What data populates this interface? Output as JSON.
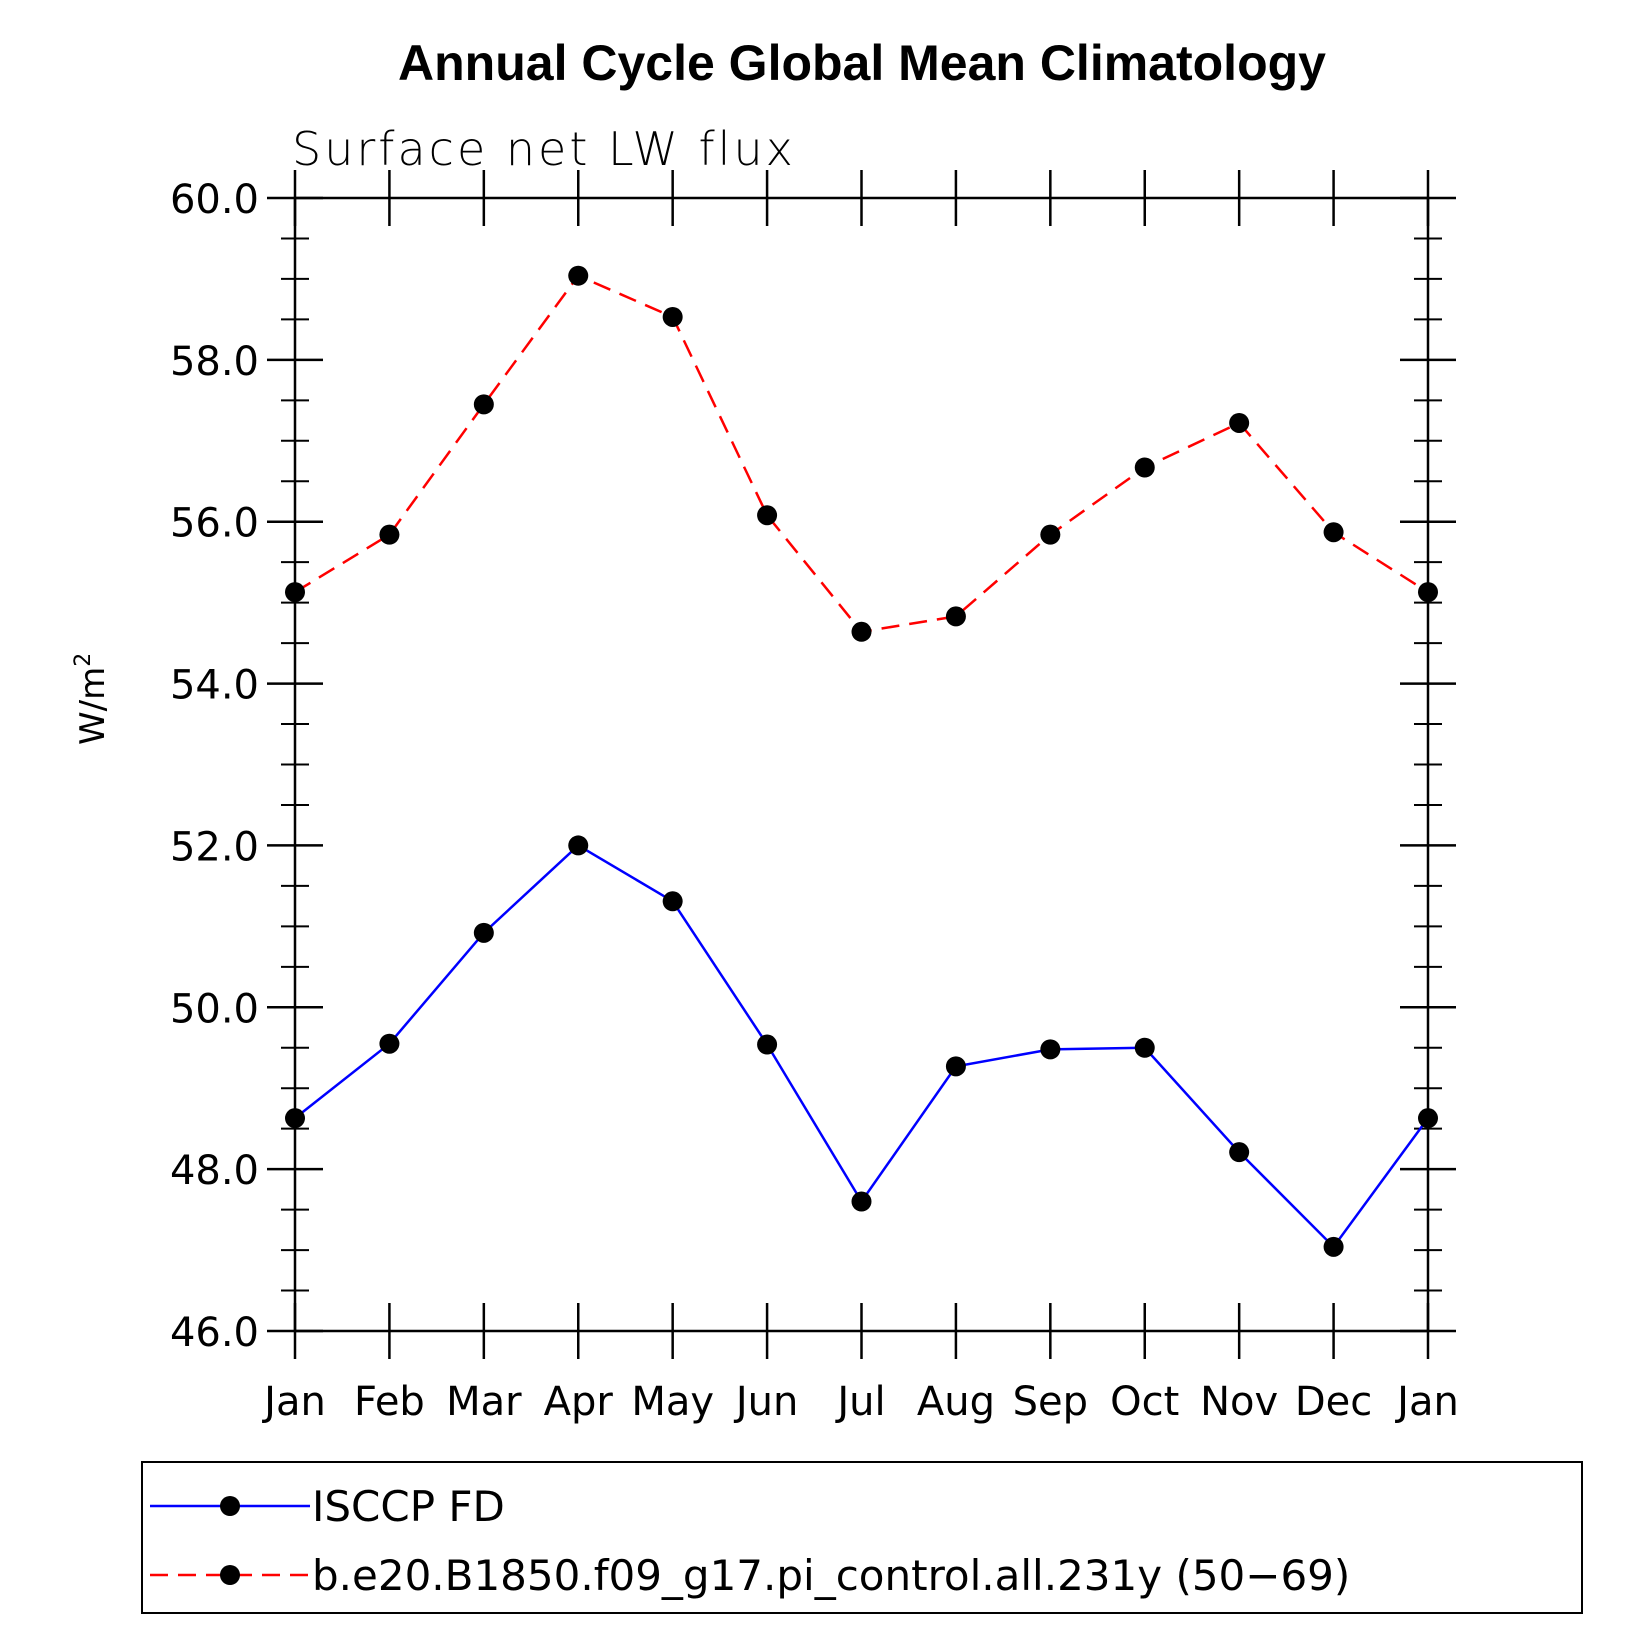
{
  "chart_data": {
    "type": "line",
    "title": "Annual Cycle Global Mean Climatology",
    "subtitle": "Surface net LW flux",
    "ylabel_main": "W/m",
    "ylabel_sup": "2",
    "xlabel": "",
    "categories": [
      "Jan",
      "Feb",
      "Mar",
      "Apr",
      "May",
      "Jun",
      "Jul",
      "Aug",
      "Sep",
      "Oct",
      "Nov",
      "Dec",
      "Jan"
    ],
    "ylim": [
      46.0,
      60.0
    ],
    "yticks": [
      46.0,
      48.0,
      50.0,
      52.0,
      54.0,
      56.0,
      58.0,
      60.0
    ],
    "ytick_labels": [
      "46.0",
      "48.0",
      "50.0",
      "52.0",
      "54.0",
      "56.0",
      "58.0",
      "60.0"
    ],
    "grid": false,
    "legend_position": "bottom",
    "series": [
      {
        "name": "ISCCP FD",
        "color": "#0000ff",
        "dash": "solid",
        "values": [
          48.63,
          49.55,
          50.92,
          52.0,
          51.31,
          49.54,
          47.6,
          49.27,
          49.48,
          49.5,
          48.21,
          47.04,
          48.63
        ]
      },
      {
        "name": "b.e20.B1850.f09_g17.pi_control.all.231y (50−69)",
        "color": "#ff0000",
        "dash": "dashed",
        "values": [
          55.13,
          55.84,
          57.45,
          59.04,
          58.53,
          56.08,
          54.64,
          54.83,
          55.84,
          56.67,
          57.22,
          55.87,
          55.13
        ]
      }
    ]
  }
}
